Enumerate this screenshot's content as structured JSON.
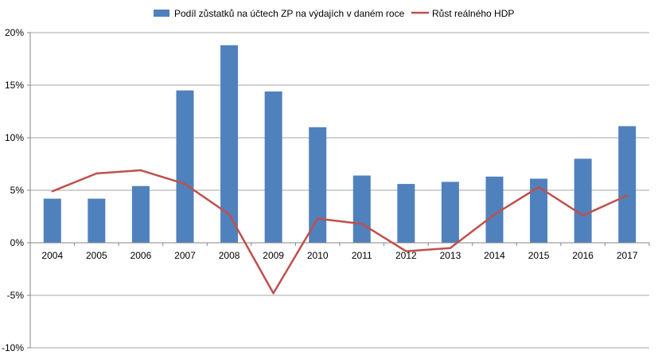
{
  "chart_data": {
    "type": "bar+line",
    "categories": [
      "2004",
      "2005",
      "2006",
      "2007",
      "2008",
      "2009",
      "2010",
      "2011",
      "2012",
      "2013",
      "2014",
      "2015",
      "2016",
      "2017"
    ],
    "series": [
      {
        "name": "Podíl zůstatků na účtech ZP na výdajích v daném roce",
        "type": "bar",
        "color": "#4f81bd",
        "values": [
          4.2,
          4.2,
          5.4,
          14.5,
          18.8,
          14.4,
          11.0,
          6.4,
          5.6,
          5.8,
          6.3,
          6.1,
          8.0,
          11.1
        ]
      },
      {
        "name": "Růst reálného HDP",
        "type": "line",
        "color": "#c0504d",
        "values": [
          4.9,
          6.6,
          6.9,
          5.6,
          2.7,
          -4.8,
          2.3,
          1.8,
          -0.8,
          -0.5,
          2.7,
          5.3,
          2.6,
          4.5
        ]
      }
    ],
    "ylim": [
      -10,
      20
    ],
    "yticks": [
      -10,
      -5,
      0,
      5,
      10,
      15,
      20
    ],
    "ytick_labels": [
      "-10%",
      "-5%",
      "0%",
      "5%",
      "10%",
      "15%",
      "20%"
    ],
    "grid": true,
    "legend_position": "top"
  }
}
